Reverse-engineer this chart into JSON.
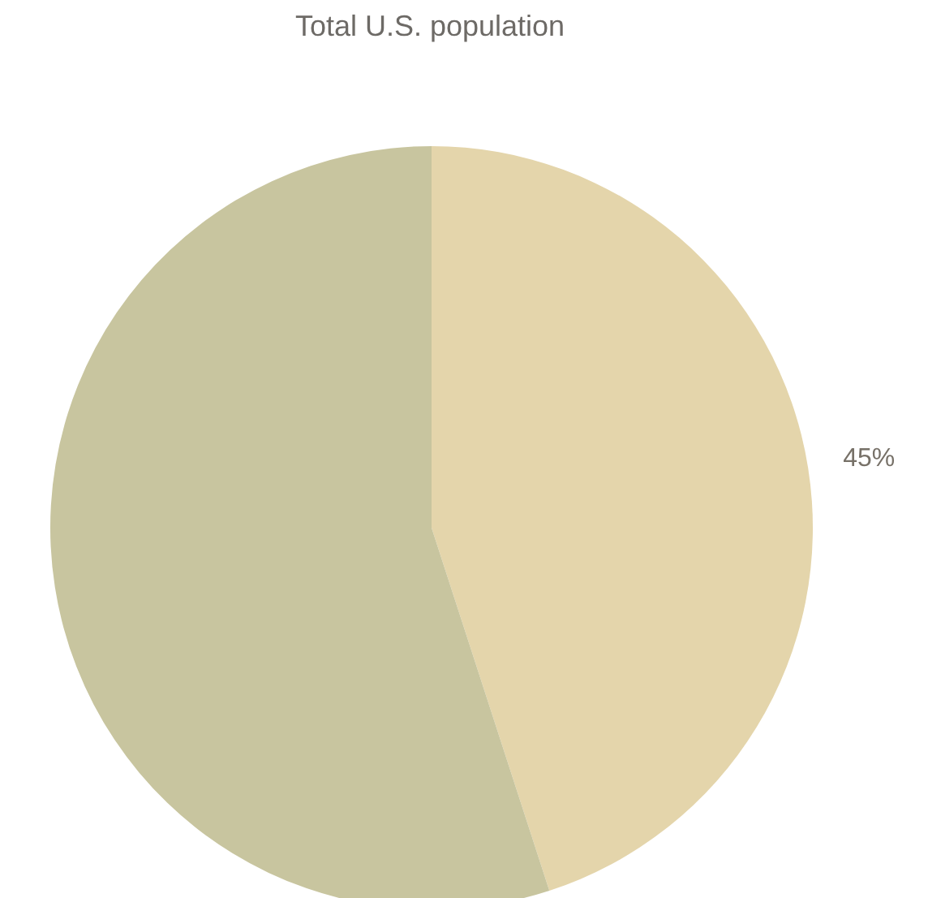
{
  "chart_data": {
    "type": "pie",
    "title": "Total U.S. population",
    "categories": [
      null,
      null
    ],
    "values": [
      45,
      55
    ],
    "colors": [
      "#e4d5ab",
      "#c8c59f"
    ],
    "value_labels": [
      "45%",
      null
    ]
  }
}
